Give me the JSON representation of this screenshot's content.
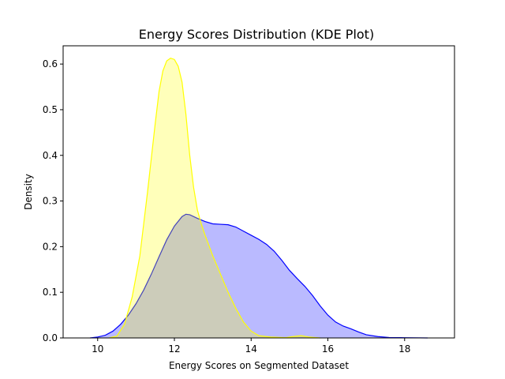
{
  "chart_data": {
    "type": "area",
    "title": "Energy Scores Distribution (KDE Plot)",
    "xlabel": "Energy Scores on Segmented Dataset",
    "ylabel": "Density",
    "xlim": [
      9.1,
      19.3
    ],
    "ylim": [
      0,
      0.64
    ],
    "x_ticks": [
      10,
      12,
      14,
      16,
      18
    ],
    "y_ticks": [
      0.0,
      0.1,
      0.2,
      0.3,
      0.4,
      0.5,
      0.6
    ],
    "x_tick_labels": [
      "10",
      "12",
      "14",
      "16",
      "18"
    ],
    "y_tick_labels": [
      "0.0",
      "0.1",
      "0.2",
      "0.3",
      "0.4",
      "0.5",
      "0.6"
    ],
    "grid": false,
    "legend": "none",
    "series": [
      {
        "color": "#0000ff",
        "fill": "#0000ff",
        "fill_opacity": 0.27,
        "points": [
          [
            9.8,
            0.0
          ],
          [
            10.0,
            0.002
          ],
          [
            10.2,
            0.006
          ],
          [
            10.4,
            0.015
          ],
          [
            10.6,
            0.03
          ],
          [
            10.8,
            0.05
          ],
          [
            11.0,
            0.075
          ],
          [
            11.2,
            0.105
          ],
          [
            11.4,
            0.14
          ],
          [
            11.6,
            0.178
          ],
          [
            11.8,
            0.215
          ],
          [
            12.0,
            0.245
          ],
          [
            12.2,
            0.266
          ],
          [
            12.3,
            0.271
          ],
          [
            12.4,
            0.27
          ],
          [
            12.6,
            0.262
          ],
          [
            12.8,
            0.255
          ],
          [
            13.0,
            0.25
          ],
          [
            13.2,
            0.249
          ],
          [
            13.4,
            0.248
          ],
          [
            13.6,
            0.243
          ],
          [
            13.8,
            0.234
          ],
          [
            14.0,
            0.225
          ],
          [
            14.2,
            0.216
          ],
          [
            14.4,
            0.205
          ],
          [
            14.6,
            0.19
          ],
          [
            14.8,
            0.17
          ],
          [
            15.0,
            0.148
          ],
          [
            15.2,
            0.13
          ],
          [
            15.4,
            0.113
          ],
          [
            15.6,
            0.093
          ],
          [
            15.8,
            0.07
          ],
          [
            16.0,
            0.05
          ],
          [
            16.2,
            0.035
          ],
          [
            16.4,
            0.026
          ],
          [
            16.6,
            0.02
          ],
          [
            16.8,
            0.013
          ],
          [
            17.0,
            0.007
          ],
          [
            17.3,
            0.003
          ],
          [
            17.6,
            0.001
          ],
          [
            18.0,
            0.0005
          ],
          [
            18.6,
            0.0
          ]
        ]
      },
      {
        "color": "#ffff00",
        "fill": "#ffff00",
        "fill_opacity": 0.27,
        "points": [
          [
            10.3,
            0.0
          ],
          [
            10.5,
            0.004
          ],
          [
            10.7,
            0.03
          ],
          [
            10.9,
            0.09
          ],
          [
            11.1,
            0.18
          ],
          [
            11.3,
            0.32
          ],
          [
            11.5,
            0.47
          ],
          [
            11.6,
            0.54
          ],
          [
            11.7,
            0.585
          ],
          [
            11.8,
            0.607
          ],
          [
            11.9,
            0.613
          ],
          [
            12.0,
            0.61
          ],
          [
            12.1,
            0.595
          ],
          [
            12.2,
            0.56
          ],
          [
            12.3,
            0.49
          ],
          [
            12.4,
            0.4
          ],
          [
            12.5,
            0.33
          ],
          [
            12.6,
            0.28
          ],
          [
            12.7,
            0.25
          ],
          [
            12.8,
            0.225
          ],
          [
            13.0,
            0.18
          ],
          [
            13.2,
            0.14
          ],
          [
            13.4,
            0.1
          ],
          [
            13.6,
            0.065
          ],
          [
            13.8,
            0.035
          ],
          [
            14.0,
            0.015
          ],
          [
            14.2,
            0.005
          ],
          [
            14.5,
            0.002
          ],
          [
            14.9,
            0.0008
          ],
          [
            15.1,
            0.003
          ],
          [
            15.3,
            0.005
          ],
          [
            15.5,
            0.002
          ],
          [
            15.8,
            0.0
          ]
        ]
      }
    ]
  }
}
